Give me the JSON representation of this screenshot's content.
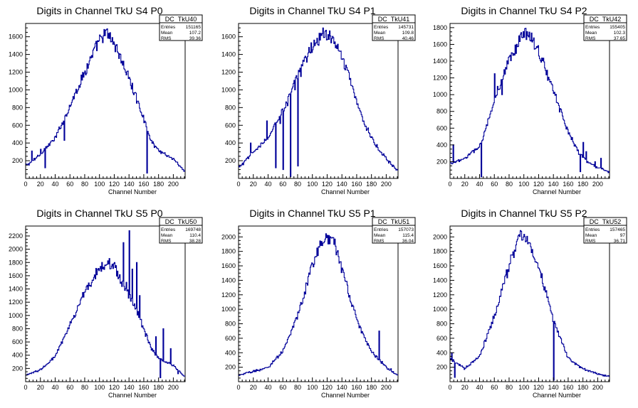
{
  "chart_data": [
    {
      "type": "histogram",
      "title": "Digits in Channel TkU S4 P0",
      "xlabel": "Channel Number",
      "xlim": [
        0,
        216
      ],
      "ylim": [
        0,
        1750
      ],
      "xticks": [
        0,
        20,
        40,
        60,
        80,
        100,
        120,
        140,
        160,
        180,
        200
      ],
      "yticks": [
        200,
        400,
        600,
        800,
        1000,
        1200,
        1400,
        1600
      ],
      "stats": {
        "name": "DC_TkU40",
        "entries": "151165",
        "mean": "107.2",
        "rms": "39.36"
      },
      "shape": {
        "mean": 107,
        "sigma": 35,
        "peak": 1620,
        "base": 80
      },
      "anchors": [
        [
          2,
          150
        ],
        [
          10,
          200
        ],
        [
          20,
          280
        ],
        [
          40,
          450
        ],
        [
          60,
          820
        ],
        [
          80,
          1200
        ],
        [
          100,
          1560
        ],
        [
          110,
          1640
        ],
        [
          120,
          1530
        ],
        [
          140,
          1130
        ],
        [
          160,
          680
        ],
        [
          170,
          420
        ],
        [
          180,
          320
        ],
        [
          200,
          220
        ],
        [
          215,
          80
        ]
      ],
      "spikes": [
        [
          8,
          310
        ],
        [
          20,
          330
        ],
        [
          26,
          120
        ],
        [
          52,
          430
        ],
        [
          164,
          60
        ],
        [
          207,
          140
        ]
      ]
    },
    {
      "type": "histogram",
      "title": "Digits in Channel TkU S4 P1",
      "xlabel": "Channel Number",
      "xlim": [
        0,
        216
      ],
      "ylim": [
        0,
        1750
      ],
      "xticks": [
        0,
        20,
        40,
        60,
        80,
        100,
        120,
        140,
        160,
        180,
        200
      ],
      "yticks": [
        200,
        400,
        600,
        800,
        1000,
        1200,
        1400,
        1600
      ],
      "stats": {
        "name": "DC_TkU41",
        "entries": "145731",
        "mean": "109.8",
        "rms": "40.46"
      },
      "shape": {
        "mean": 113,
        "sigma": 34,
        "peak": 1640,
        "base": 90
      },
      "anchors": [
        [
          2,
          130
        ],
        [
          10,
          200
        ],
        [
          20,
          300
        ],
        [
          40,
          450
        ],
        [
          60,
          780
        ],
        [
          80,
          1150
        ],
        [
          100,
          1500
        ],
        [
          115,
          1640
        ],
        [
          130,
          1560
        ],
        [
          150,
          1150
        ],
        [
          170,
          620
        ],
        [
          190,
          320
        ],
        [
          200,
          220
        ],
        [
          215,
          90
        ]
      ],
      "spikes": [
        [
          16,
          400
        ],
        [
          38,
          650
        ],
        [
          50,
          120
        ],
        [
          52,
          640
        ],
        [
          56,
          620
        ],
        [
          60,
          100
        ],
        [
          63,
          800
        ],
        [
          66,
          820
        ],
        [
          70,
          20
        ],
        [
          76,
          1000
        ],
        [
          80,
          140
        ],
        [
          84,
          1150
        ]
      ]
    },
    {
      "type": "histogram",
      "title": "Digits in Channel TkU S4 P2",
      "xlabel": "Channel Number",
      "xlim": [
        0,
        216
      ],
      "ylim": [
        0,
        1850
      ],
      "xticks": [
        0,
        20,
        40,
        60,
        80,
        100,
        120,
        140,
        160,
        180,
        200
      ],
      "yticks": [
        200,
        400,
        600,
        800,
        1000,
        1200,
        1400,
        1600,
        1800
      ],
      "stats": {
        "name": "DC_TkU42",
        "entries": "155405",
        "mean": "102.3",
        "rms": "37.65"
      },
      "shape": {
        "mean": 100,
        "sigma": 34,
        "peak": 1740,
        "base": 90
      },
      "anchors": [
        [
          2,
          180
        ],
        [
          20,
          240
        ],
        [
          40,
          380
        ],
        [
          60,
          900
        ],
        [
          80,
          1400
        ],
        [
          100,
          1740
        ],
        [
          110,
          1700
        ],
        [
          120,
          1520
        ],
        [
          140,
          1050
        ],
        [
          160,
          560
        ],
        [
          175,
          300
        ],
        [
          190,
          170
        ],
        [
          200,
          130
        ],
        [
          215,
          80
        ]
      ],
      "spikes": [
        [
          4,
          400
        ],
        [
          12,
          200
        ],
        [
          42,
          20
        ],
        [
          44,
          460
        ],
        [
          60,
          1250
        ],
        [
          64,
          1100
        ],
        [
          70,
          1000
        ],
        [
          176,
          80
        ],
        [
          180,
          430
        ],
        [
          184,
          320
        ],
        [
          196,
          200
        ],
        [
          204,
          240
        ]
      ]
    },
    {
      "type": "histogram",
      "title": "Digits in Channel TkU S5 P0",
      "xlabel": "Channel Number",
      "xlim": [
        0,
        216
      ],
      "ylim": [
        0,
        2350
      ],
      "xticks": [
        0,
        20,
        40,
        60,
        80,
        100,
        120,
        140,
        160,
        180,
        200
      ],
      "yticks": [
        200,
        400,
        600,
        800,
        1000,
        1200,
        1400,
        1600,
        1800,
        2000,
        2200
      ],
      "stats": {
        "name": "DC_TkU50",
        "entries": "169748",
        "mean": "110.4",
        "rms": "38.28"
      },
      "shape": {
        "mean": 108,
        "sigma": 40,
        "peak": 1800,
        "base": 80
      },
      "anchors": [
        [
          2,
          100
        ],
        [
          20,
          180
        ],
        [
          40,
          380
        ],
        [
          60,
          850
        ],
        [
          80,
          1350
        ],
        [
          100,
          1720
        ],
        [
          110,
          1800
        ],
        [
          120,
          1750
        ],
        [
          130,
          1500
        ],
        [
          150,
          1100
        ],
        [
          170,
          500
        ],
        [
          180,
          350
        ],
        [
          200,
          250
        ],
        [
          215,
          80
        ]
      ],
      "spikes": [
        [
          132,
          2100
        ],
        [
          136,
          1500
        ],
        [
          140,
          2280
        ],
        [
          144,
          1700
        ],
        [
          150,
          1800
        ],
        [
          154,
          1300
        ],
        [
          176,
          680
        ],
        [
          182,
          60
        ],
        [
          186,
          800
        ],
        [
          190,
          300
        ],
        [
          196,
          500
        ],
        [
          206,
          120
        ]
      ]
    },
    {
      "type": "histogram",
      "title": "Digits in Channel TkU S5 P1",
      "xlabel": "Channel Number",
      "xlim": [
        0,
        216
      ],
      "ylim": [
        0,
        2150
      ],
      "xticks": [
        0,
        20,
        40,
        60,
        80,
        100,
        120,
        140,
        160,
        180,
        200
      ],
      "yticks": [
        200,
        400,
        600,
        800,
        1000,
        1200,
        1400,
        1600,
        1800,
        2000
      ],
      "stats": {
        "name": "DC_TkU51",
        "entries": "157073",
        "mean": "115.4",
        "rms": "36.04"
      },
      "shape": {
        "mean": 118,
        "sigma": 32,
        "peak": 2000,
        "base": 90
      },
      "anchors": [
        [
          2,
          100
        ],
        [
          20,
          140
        ],
        [
          40,
          200
        ],
        [
          60,
          420
        ],
        [
          80,
          900
        ],
        [
          100,
          1600
        ],
        [
          112,
          1950
        ],
        [
          120,
          2000
        ],
        [
          130,
          1900
        ],
        [
          140,
          1550
        ],
        [
          160,
          850
        ],
        [
          180,
          420
        ],
        [
          200,
          200
        ],
        [
          215,
          90
        ]
      ],
      "spikes": [
        [
          190,
          700
        ],
        [
          194,
          280
        ],
        [
          206,
          180
        ]
      ]
    },
    {
      "type": "histogram",
      "title": "Digits in Channel TkU S5 P2",
      "xlabel": "Channel Number",
      "xlim": [
        0,
        216
      ],
      "ylim": [
        0,
        2150
      ],
      "xticks": [
        0,
        20,
        40,
        60,
        80,
        100,
        120,
        140,
        160,
        180,
        200
      ],
      "yticks": [
        200,
        400,
        600,
        800,
        1000,
        1200,
        1400,
        1600,
        1800,
        2000
      ],
      "stats": {
        "name": "DC_TkU52",
        "entries": "157465",
        "mean": "97",
        "rms": "36.71"
      },
      "shape": {
        "mean": 95,
        "sigma": 32,
        "peak": 2020,
        "base": 80
      },
      "anchors": [
        [
          2,
          300
        ],
        [
          20,
          180
        ],
        [
          40,
          350
        ],
        [
          60,
          900
        ],
        [
          80,
          1600
        ],
        [
          95,
          2020
        ],
        [
          105,
          1950
        ],
        [
          120,
          1600
        ],
        [
          140,
          850
        ],
        [
          160,
          320
        ],
        [
          180,
          180
        ],
        [
          200,
          110
        ],
        [
          215,
          70
        ]
      ],
      "spikes": [
        [
          2,
          400
        ],
        [
          140,
          20
        ],
        [
          6,
          60
        ]
      ]
    }
  ]
}
